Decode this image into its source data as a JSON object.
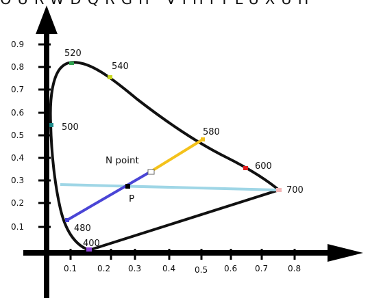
{
  "header": {
    "text": "OURWDQRGH VIHITLUXUH"
  },
  "y_ticks": [
    "0.9",
    "0.8",
    "0.7",
    "0.6",
    "0.5",
    "0.4",
    "0.3",
    "0.2",
    "0.1"
  ],
  "x_ticks": [
    "0.1",
    "0.2",
    "0.3",
    "0.4",
    "0.5",
    "0.6",
    "0.7",
    "0.8"
  ],
  "wavelengths": [
    "520",
    "540",
    "500",
    "580",
    "600",
    "700",
    "480",
    "400"
  ],
  "annotations": {
    "n_point": "N point",
    "p": "P"
  },
  "colors": {
    "locus": "#111111",
    "line_580_point": "#f4c21b",
    "line_480_p": "#4a45d6",
    "line_p_700": "#9fd6e6",
    "marker_520": "#2ea44f",
    "marker_540": "#c7d61e",
    "marker_500": "#1f8a8a",
    "marker_600": "#e02020",
    "marker_400": "#8a3fd6"
  }
}
